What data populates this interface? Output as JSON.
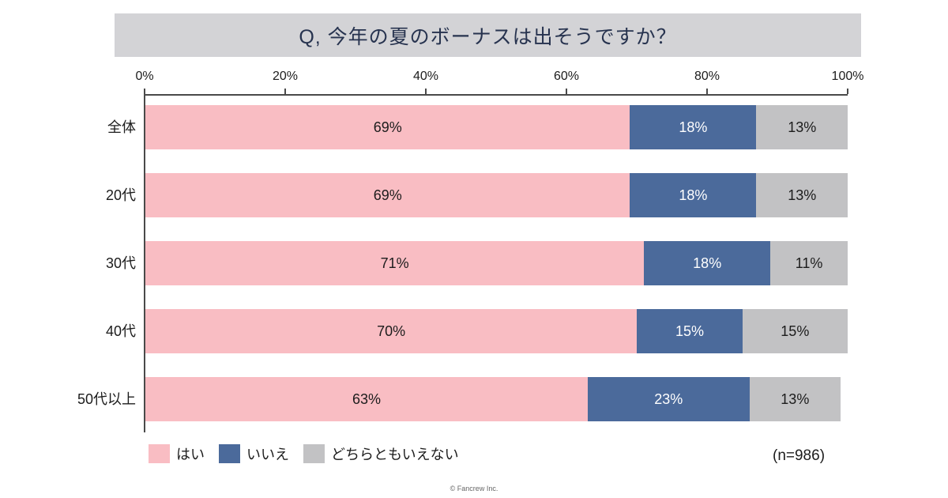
{
  "title": "Q, 今年の夏のボーナスは出そうですか？",
  "sample_note": "(n=986)",
  "footer": "© Fancrew Inc.",
  "colors": {
    "title_bar_background": "#d3d3d6",
    "axis": "#4a4a4a",
    "yes_pink": "#f9bdc3",
    "no_blue": "#4b6a9b",
    "neutral_gray": "#c2c2c4"
  },
  "chart_data": {
    "type": "bar",
    "stacked": true,
    "orientation": "horizontal",
    "title": "Q, 今年の夏のボーナスは出そうですか？",
    "categories": [
      "全体",
      "20代",
      "30代",
      "40代",
      "50代以上"
    ],
    "series": [
      {
        "name": "はい",
        "color": "#f9bdc3",
        "text_color": "#1c1c1c",
        "values": [
          69,
          69,
          71,
          70,
          63
        ]
      },
      {
        "name": "いいえ",
        "color": "#4b6a9b",
        "text_color": "#ffffff",
        "values": [
          18,
          18,
          18,
          15,
          23
        ]
      },
      {
        "name": "どちらともいえない",
        "color": "#c2c2c4",
        "text_color": "#1c1c1c",
        "values": [
          13,
          13,
          11,
          15,
          13
        ]
      }
    ],
    "x_ticks": [
      "0%",
      "20%",
      "40%",
      "60%",
      "80%",
      "100%"
    ],
    "xlim": [
      0,
      100
    ],
    "value_suffix": "%",
    "grid": false,
    "legend_position": "bottom"
  }
}
